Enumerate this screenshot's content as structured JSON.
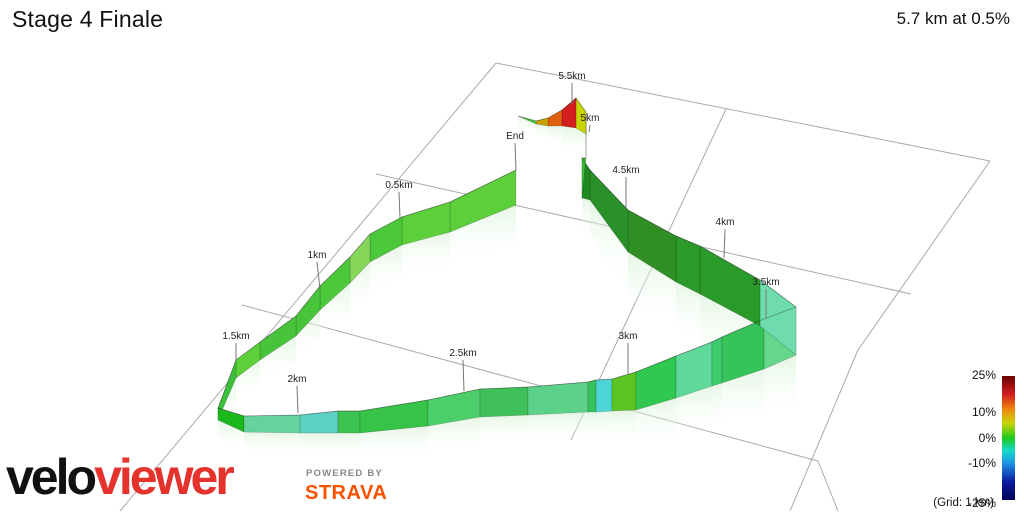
{
  "header": {
    "title": "Stage 4 Finale",
    "summary": "5.7 km at 0.5%"
  },
  "chart_data": {
    "type": "area",
    "title": "Stage 4 Finale",
    "total_distance_km": 5.7,
    "average_gradient_pct": 0.5,
    "distance_markers": [
      {
        "label": "End",
        "km": 0.0
      },
      {
        "label": "0.5km",
        "km": 0.5
      },
      {
        "label": "1km",
        "km": 1.0
      },
      {
        "label": "1.5km",
        "km": 1.5
      },
      {
        "label": "2km",
        "km": 2.0
      },
      {
        "label": "2.5km",
        "km": 2.5
      },
      {
        "label": "3km",
        "km": 3.0
      },
      {
        "label": "3.5km",
        "km": 3.5
      },
      {
        "label": "4km",
        "km": 4.0
      },
      {
        "label": "4.5km",
        "km": 4.5
      },
      {
        "label": "5km",
        "km": 5.0
      },
      {
        "label": "5.5km",
        "km": 5.5
      }
    ],
    "color_scale": {
      "ticks": [
        "25%",
        "10%",
        "0%",
        "-10%",
        "-25%"
      ],
      "values": [
        25,
        10,
        0,
        -10,
        -25
      ],
      "colors": [
        "#6b0000",
        "#d21e1e",
        "#f08a0a",
        "#c8d400",
        "#1ec81e",
        "#14dcc8",
        "#1e96e6",
        "#0a1ea0",
        "#00005a"
      ]
    },
    "grid_note": "(Grid: 1 km)"
  },
  "branding": {
    "velo": "velo",
    "viewer": "viewer",
    "powered_by": "POWERED BY",
    "strava": "STRAVA"
  }
}
